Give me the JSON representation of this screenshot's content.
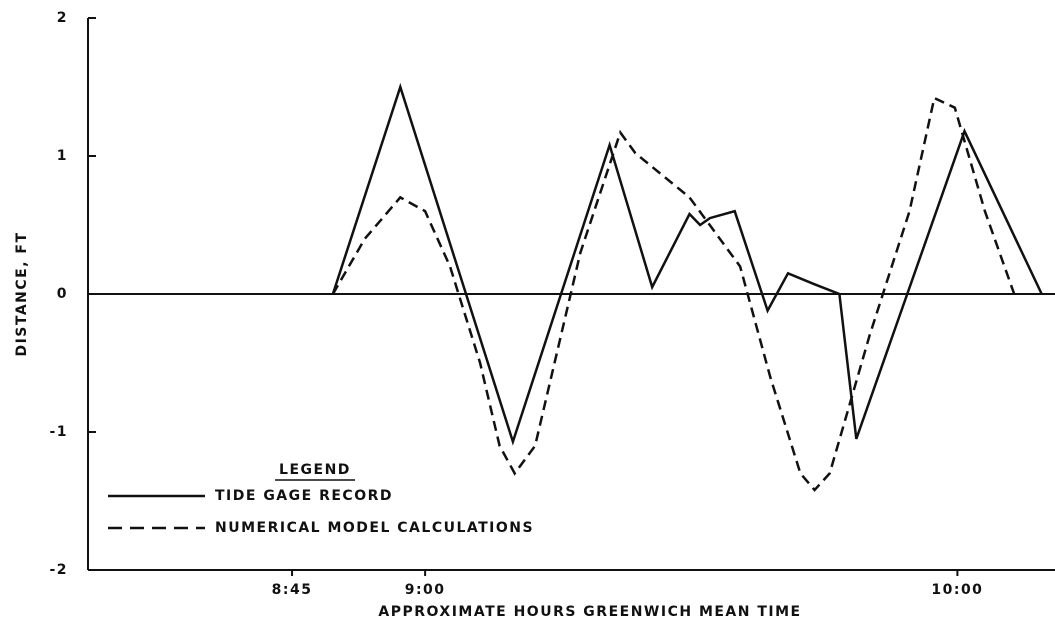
{
  "chart_data": {
    "type": "line",
    "xlabel": "APPROXIMATE HOURS GREENWICH MEAN TIME",
    "ylabel": "DISTANCE, FT",
    "legend_title": "LEGEND",
    "legend": "lower left",
    "xlim": [
      22,
      131
    ],
    "xticks": [
      {
        "value": 45,
        "label": "8:45"
      },
      {
        "value": 60,
        "label": "9:00"
      },
      {
        "value": 120,
        "label": "10:00"
      }
    ],
    "ylim": [
      -2,
      2
    ],
    "yticks": [
      -2,
      -1,
      0,
      1,
      2
    ],
    "series": [
      {
        "name": "TIDE GAGE RECORD",
        "color": "#111111",
        "line_style": "solid",
        "x": [
          49.6,
          57.2,
          69.9,
          80.8,
          85.6,
          89.8,
          91.0,
          92.1,
          94.9,
          98.6,
          100.9,
          103.9,
          106.7,
          108.6,
          120.8,
          129.5
        ],
        "values": [
          0,
          1.5,
          -1.07,
          1.08,
          0.05,
          0.58,
          0.5,
          0.55,
          0.6,
          -0.12,
          0.15,
          0.07,
          0,
          -1.05,
          1.18,
          0
        ]
      },
      {
        "name": "NUMERICAL MODEL CALCULATIONS",
        "color": "#111111",
        "line_style": "dashed",
        "x": [
          49.6,
          53.2,
          57.2,
          60,
          62.8,
          66.2,
          68.4,
          70.1,
          72.4,
          77.5,
          82,
          83.7,
          89.8,
          95.5,
          98.9,
          102.3,
          103.9,
          105.6,
          110.1,
          114.6,
          117.4,
          119.7,
          123.1,
          126.4
        ],
        "values": [
          0,
          0.4,
          0.7,
          0.6,
          0.2,
          -0.5,
          -1.1,
          -1.3,
          -1.1,
          0.3,
          1.17,
          1.02,
          0.7,
          0.2,
          -0.6,
          -1.3,
          -1.42,
          -1.3,
          -0.3,
          0.6,
          1.42,
          1.35,
          0.6,
          0
        ]
      }
    ]
  }
}
